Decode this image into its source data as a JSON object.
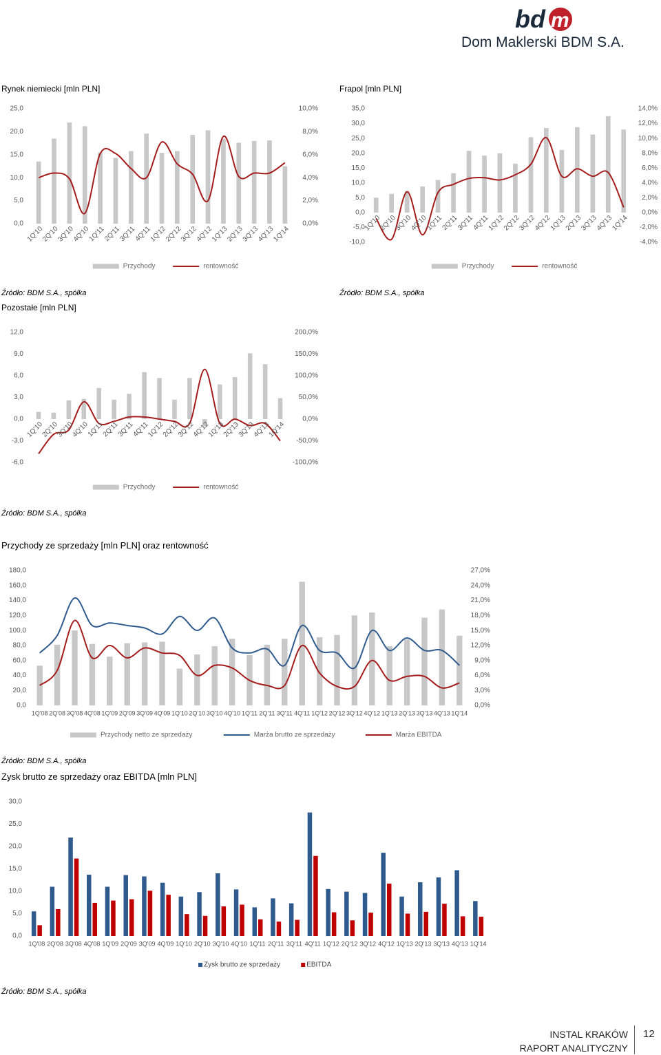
{
  "header": {
    "logo_text": "Dom Maklerski BDM S.A."
  },
  "footer": {
    "line1": "INSTAL KRAKÓW",
    "line2": "RAPORT ANALITYCZNY",
    "page": "12"
  },
  "colors": {
    "bar_gray": "#c8c8c8",
    "line_red": "#a51c1c",
    "line_blue": "#2f5a8e",
    "bar_red": "#c00000"
  },
  "chart_data": [
    {
      "id": "rynek",
      "type": "bar",
      "title": "Rynek niemiecki [mln PLN]",
      "source": "Źródło: BDM S.A., spółka",
      "categories": [
        "1Q'10",
        "2Q'10",
        "3Q'10",
        "4Q'10",
        "1Q'11",
        "2Q'11",
        "3Q'11",
        "4Q'11",
        "1Q'12",
        "2Q'12",
        "3Q'12",
        "4Q'12",
        "1Q'13",
        "2Q'13",
        "3Q'13",
        "4Q'13",
        "1Q'14"
      ],
      "series": [
        {
          "name": "Przychody",
          "axis": "left",
          "values": [
            13.5,
            18.5,
            22.0,
            21.2,
            15.5,
            14.3,
            15.8,
            19.6,
            15.4,
            15.8,
            19.3,
            20.3,
            18.5,
            17.6,
            18.0,
            18.1,
            12.5
          ]
        },
        {
          "name": "rentowność",
          "axis": "right",
          "values": [
            4.0,
            4.4,
            3.9,
            0.9,
            6.1,
            6.1,
            4.8,
            4.0,
            7.1,
            5.2,
            4.3,
            2.0,
            7.6,
            4.1,
            4.4,
            4.4,
            5.3
          ]
        }
      ],
      "ylim_left": [
        0,
        25
      ],
      "ylim_right": [
        0,
        10
      ],
      "yticks_left": [
        "0,0",
        "5,0",
        "10,0",
        "15,0",
        "20,0",
        "25,0"
      ],
      "yticks_right": [
        "0,0%",
        "2,0%",
        "4,0%",
        "6,0%",
        "8,0%",
        "10,0%"
      ]
    },
    {
      "id": "frapol",
      "type": "bar",
      "title": "Frapol [mln PLN]",
      "source": "Źródło: BDM S.A., spółka",
      "categories": [
        "1Q'10",
        "2Q'10",
        "3Q'10",
        "4Q'10",
        "1Q'11",
        "2Q'11",
        "3Q'11",
        "4Q'11",
        "1Q'12",
        "2Q'12",
        "3Q'12",
        "4Q'12",
        "1Q'13",
        "2Q'13",
        "3Q'13",
        "4Q'13",
        "1Q'14"
      ],
      "series": [
        {
          "name": "Przychody",
          "axis": "left",
          "values": [
            5.0,
            6.3,
            7.3,
            8.8,
            11.0,
            13.3,
            20.8,
            19.2,
            20.0,
            16.5,
            25.4,
            28.5,
            21.1,
            28.8,
            26.3,
            32.5,
            28.0
          ]
        },
        {
          "name": "rentowność",
          "axis": "right",
          "values": [
            -0.8,
            -3.6,
            2.8,
            -3.0,
            2.7,
            3.8,
            4.6,
            4.7,
            4.4,
            5.1,
            6.5,
            10.1,
            4.9,
            5.9,
            4.9,
            5.4,
            0.7
          ]
        }
      ],
      "ylim_left": [
        -10,
        35
      ],
      "ylim_right": [
        -4,
        14
      ],
      "yticks_left": [
        "-10,0",
        "-5,0",
        "0,0",
        "5,0",
        "10,0",
        "15,0",
        "20,0",
        "25,0",
        "30,0",
        "35,0"
      ],
      "yticks_right": [
        "-4,0%",
        "-2,0%",
        "0,0%",
        "2,0%",
        "4,0%",
        "6,0%",
        "8,0%",
        "10,0%",
        "12,0%",
        "14,0%"
      ]
    },
    {
      "id": "pozostale",
      "type": "bar",
      "title": "Pozostałe [mln PLN]",
      "source": "Źródło: BDM S.A., spółka",
      "categories": [
        "1Q'10",
        "2Q'10",
        "3Q'10",
        "4Q'10",
        "1Q'11",
        "2Q'11",
        "3Q'11",
        "4Q'11",
        "1Q'12",
        "2Q'12",
        "3Q'12",
        "4Q'12",
        "1Q'13",
        "2Q'13",
        "3Q'13",
        "4Q'13",
        "1Q'14"
      ],
      "series": [
        {
          "name": "Przychody",
          "axis": "left",
          "values": [
            1.0,
            0.9,
            2.6,
            2.8,
            4.3,
            2.7,
            3.5,
            6.5,
            5.7,
            2.7,
            5.7,
            -1.0,
            4.8,
            5.8,
            9.1,
            7.6,
            2.9
          ]
        },
        {
          "name": "rentowność",
          "axis": "right",
          "values": [
            -80,
            -35,
            -25,
            40,
            -10,
            -5,
            5,
            5,
            0,
            -5,
            -10,
            115,
            -10,
            0,
            -15,
            -10,
            -50
          ]
        }
      ],
      "ylim_left": [
        -6,
        12
      ],
      "ylim_right": [
        -100,
        200
      ],
      "yticks_left": [
        "-6,0",
        "-3,0",
        "0,0",
        "3,0",
        "6,0",
        "9,0",
        "12,0"
      ],
      "yticks_right": [
        "-100,0%",
        "-50,0%",
        "0,0%",
        "50,0%",
        "100,0%",
        "150,0%",
        "200,0%"
      ]
    },
    {
      "id": "przychody",
      "type": "bar",
      "title": "Przychody ze sprzedaży [mln PLN] oraz rentowność",
      "source": "Źródło: BDM S.A.,  spółka",
      "categories": [
        "1Q'08",
        "2Q'08",
        "3Q'08",
        "4Q'08",
        "1Q'09",
        "2Q'09",
        "3Q'09",
        "4Q'09",
        "1Q'10",
        "2Q'10",
        "3Q'10",
        "4Q'10",
        "1Q'11",
        "2Q'11",
        "3Q'11",
        "4Q'11",
        "1Q'12",
        "2Q'12",
        "3Q'12",
        "4Q'12",
        "1Q'13",
        "2Q'13",
        "3Q'13",
        "4Q'13",
        "1Q'14"
      ],
      "series": [
        {
          "name": "Przychody netto ze sprzedaży",
          "axis": "left",
          "values": [
            53,
            81,
            100,
            82,
            65,
            83,
            84,
            85,
            49,
            68,
            79,
            89,
            67,
            81,
            89,
            165,
            91,
            94,
            120,
            124,
            79,
            88,
            117,
            128,
            93
          ]
        },
        {
          "name": "Marża brutto ze sprzedaży",
          "axis": "right",
          "values": [
            10.5,
            14.0,
            21.5,
            16.0,
            16.5,
            16.0,
            15.5,
            14.3,
            17.8,
            15.0,
            17.5,
            11.5,
            10.5,
            11.3,
            8.0,
            16.0,
            11.0,
            10.5,
            7.5,
            15.0,
            11.0,
            13.5,
            11.0,
            11.0,
            8.0
          ]
        },
        {
          "name": "Marża EBITDA",
          "axis": "right",
          "values": [
            4.0,
            7.0,
            17.0,
            9.5,
            12.0,
            9.5,
            11.5,
            10.5,
            10.0,
            6.0,
            8.0,
            7.5,
            5.0,
            4.0,
            4.0,
            12.0,
            6.5,
            3.8,
            3.8,
            9.0,
            5.0,
            5.8,
            5.8,
            3.5,
            4.5
          ]
        }
      ],
      "ylim_left": [
        0,
        180
      ],
      "ylim_right": [
        0,
        27
      ],
      "yticks_left": [
        "0,0",
        "20,0",
        "40,0",
        "60,0",
        "80,0",
        "100,0",
        "120,0",
        "140,0",
        "160,0",
        "180,0"
      ],
      "yticks_right": [
        "0,0%",
        "3,0%",
        "6,0%",
        "9,0%",
        "12,0%",
        "15,0%",
        "18,0%",
        "21,0%",
        "24,0%",
        "27,0%"
      ]
    },
    {
      "id": "zysk",
      "type": "bar",
      "title": "Zysk brutto ze sprzedaży oraz EBITDA [mln PLN]",
      "source": "Źródło: BDM S.A., spółka",
      "categories": [
        "1Q'08",
        "2Q'08",
        "3Q'08",
        "4Q'08",
        "1Q'09",
        "2Q'09",
        "3Q'09",
        "4Q'09",
        "1Q'10",
        "2Q'10",
        "3Q'10",
        "4Q'10",
        "1Q'11",
        "2Q'11",
        "3Q'11",
        "4Q'11",
        "1Q'12",
        "2Q'12",
        "3Q'12",
        "4Q'12",
        "1Q'13",
        "2Q'13",
        "3Q'13",
        "4Q'13",
        "1Q'14"
      ],
      "series": [
        {
          "name": "Zysk brutto ze sprzedaży",
          "values": [
            5.5,
            11.0,
            22.0,
            13.7,
            11.0,
            13.6,
            13.3,
            11.9,
            8.8,
            9.8,
            14.0,
            10.4,
            6.4,
            8.4,
            7.3,
            27.6,
            10.5,
            9.9,
            9.6,
            18.6,
            8.8,
            12.0,
            13.1,
            14.7,
            7.8
          ]
        },
        {
          "name": "EBITDA",
          "values": [
            2.4,
            6.0,
            17.3,
            7.4,
            7.9,
            8.2,
            10.1,
            9.2,
            4.9,
            4.5,
            6.6,
            7.0,
            3.7,
            3.2,
            3.6,
            17.9,
            5.3,
            3.5,
            5.2,
            11.7,
            5.0,
            5.4,
            7.2,
            4.4,
            4.3
          ]
        }
      ],
      "ylim": [
        0,
        30
      ],
      "yticks": [
        "0,0",
        "5,0",
        "10,0",
        "15,0",
        "20,0",
        "25,0",
        "30,0"
      ]
    }
  ]
}
